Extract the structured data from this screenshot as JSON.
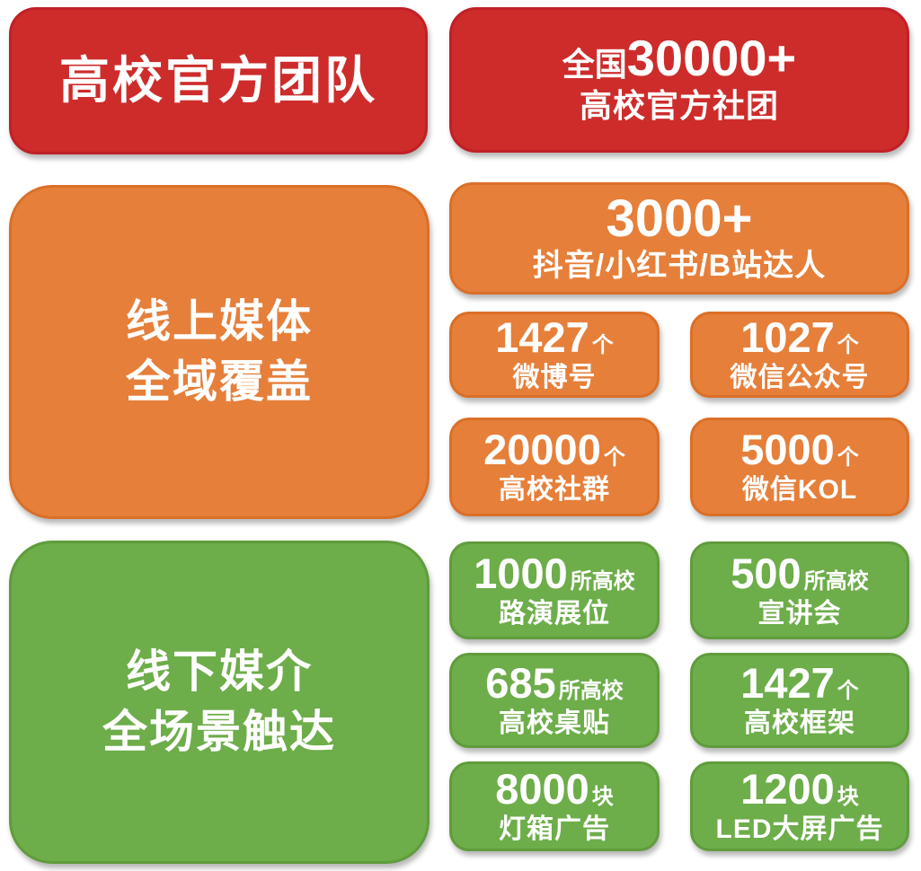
{
  "palette": {
    "red": "#cd2c2b",
    "red_border": "#c02027",
    "orange": "#e67f3a",
    "orange_border": "#db6f27",
    "green": "#6dad4a",
    "green_border": "#609c3c",
    "text": "#ffffff",
    "background": "#ffffff"
  },
  "sections": [
    {
      "id": "official-teams",
      "title": "高校官方团队",
      "stat": {
        "prefix": "全国",
        "number": "30000+",
        "label": "高校官方社团"
      }
    },
    {
      "id": "online-media",
      "title_line1": "线上媒体",
      "title_line2": "全域覆盖",
      "feature": {
        "number": "3000+",
        "label": "抖音/小红书/B站达人"
      },
      "stats": [
        {
          "number": "1427",
          "unit": "个",
          "label": "微博号"
        },
        {
          "number": "1027",
          "unit": "个",
          "label": "微信公众号"
        },
        {
          "number": "20000",
          "unit": "个",
          "label": "高校社群"
        },
        {
          "number": "5000",
          "unit": "个",
          "label": "微信KOL"
        }
      ]
    },
    {
      "id": "offline-media",
      "title_line1": "线下媒介",
      "title_line2": "全场景触达",
      "stats": [
        {
          "number": "1000",
          "unit": "所高校",
          "label": "路演展位"
        },
        {
          "number": "500",
          "unit": "所高校",
          "label": "宣讲会"
        },
        {
          "number": "685",
          "unit": "所高校",
          "label": "高校桌贴"
        },
        {
          "number": "1427",
          "unit": "个",
          "label": "高校框架"
        },
        {
          "number": "8000",
          "unit": "块",
          "label": "灯箱广告"
        },
        {
          "number": "1200",
          "unit": "块",
          "label": "LED大屏广告"
        }
      ]
    }
  ]
}
